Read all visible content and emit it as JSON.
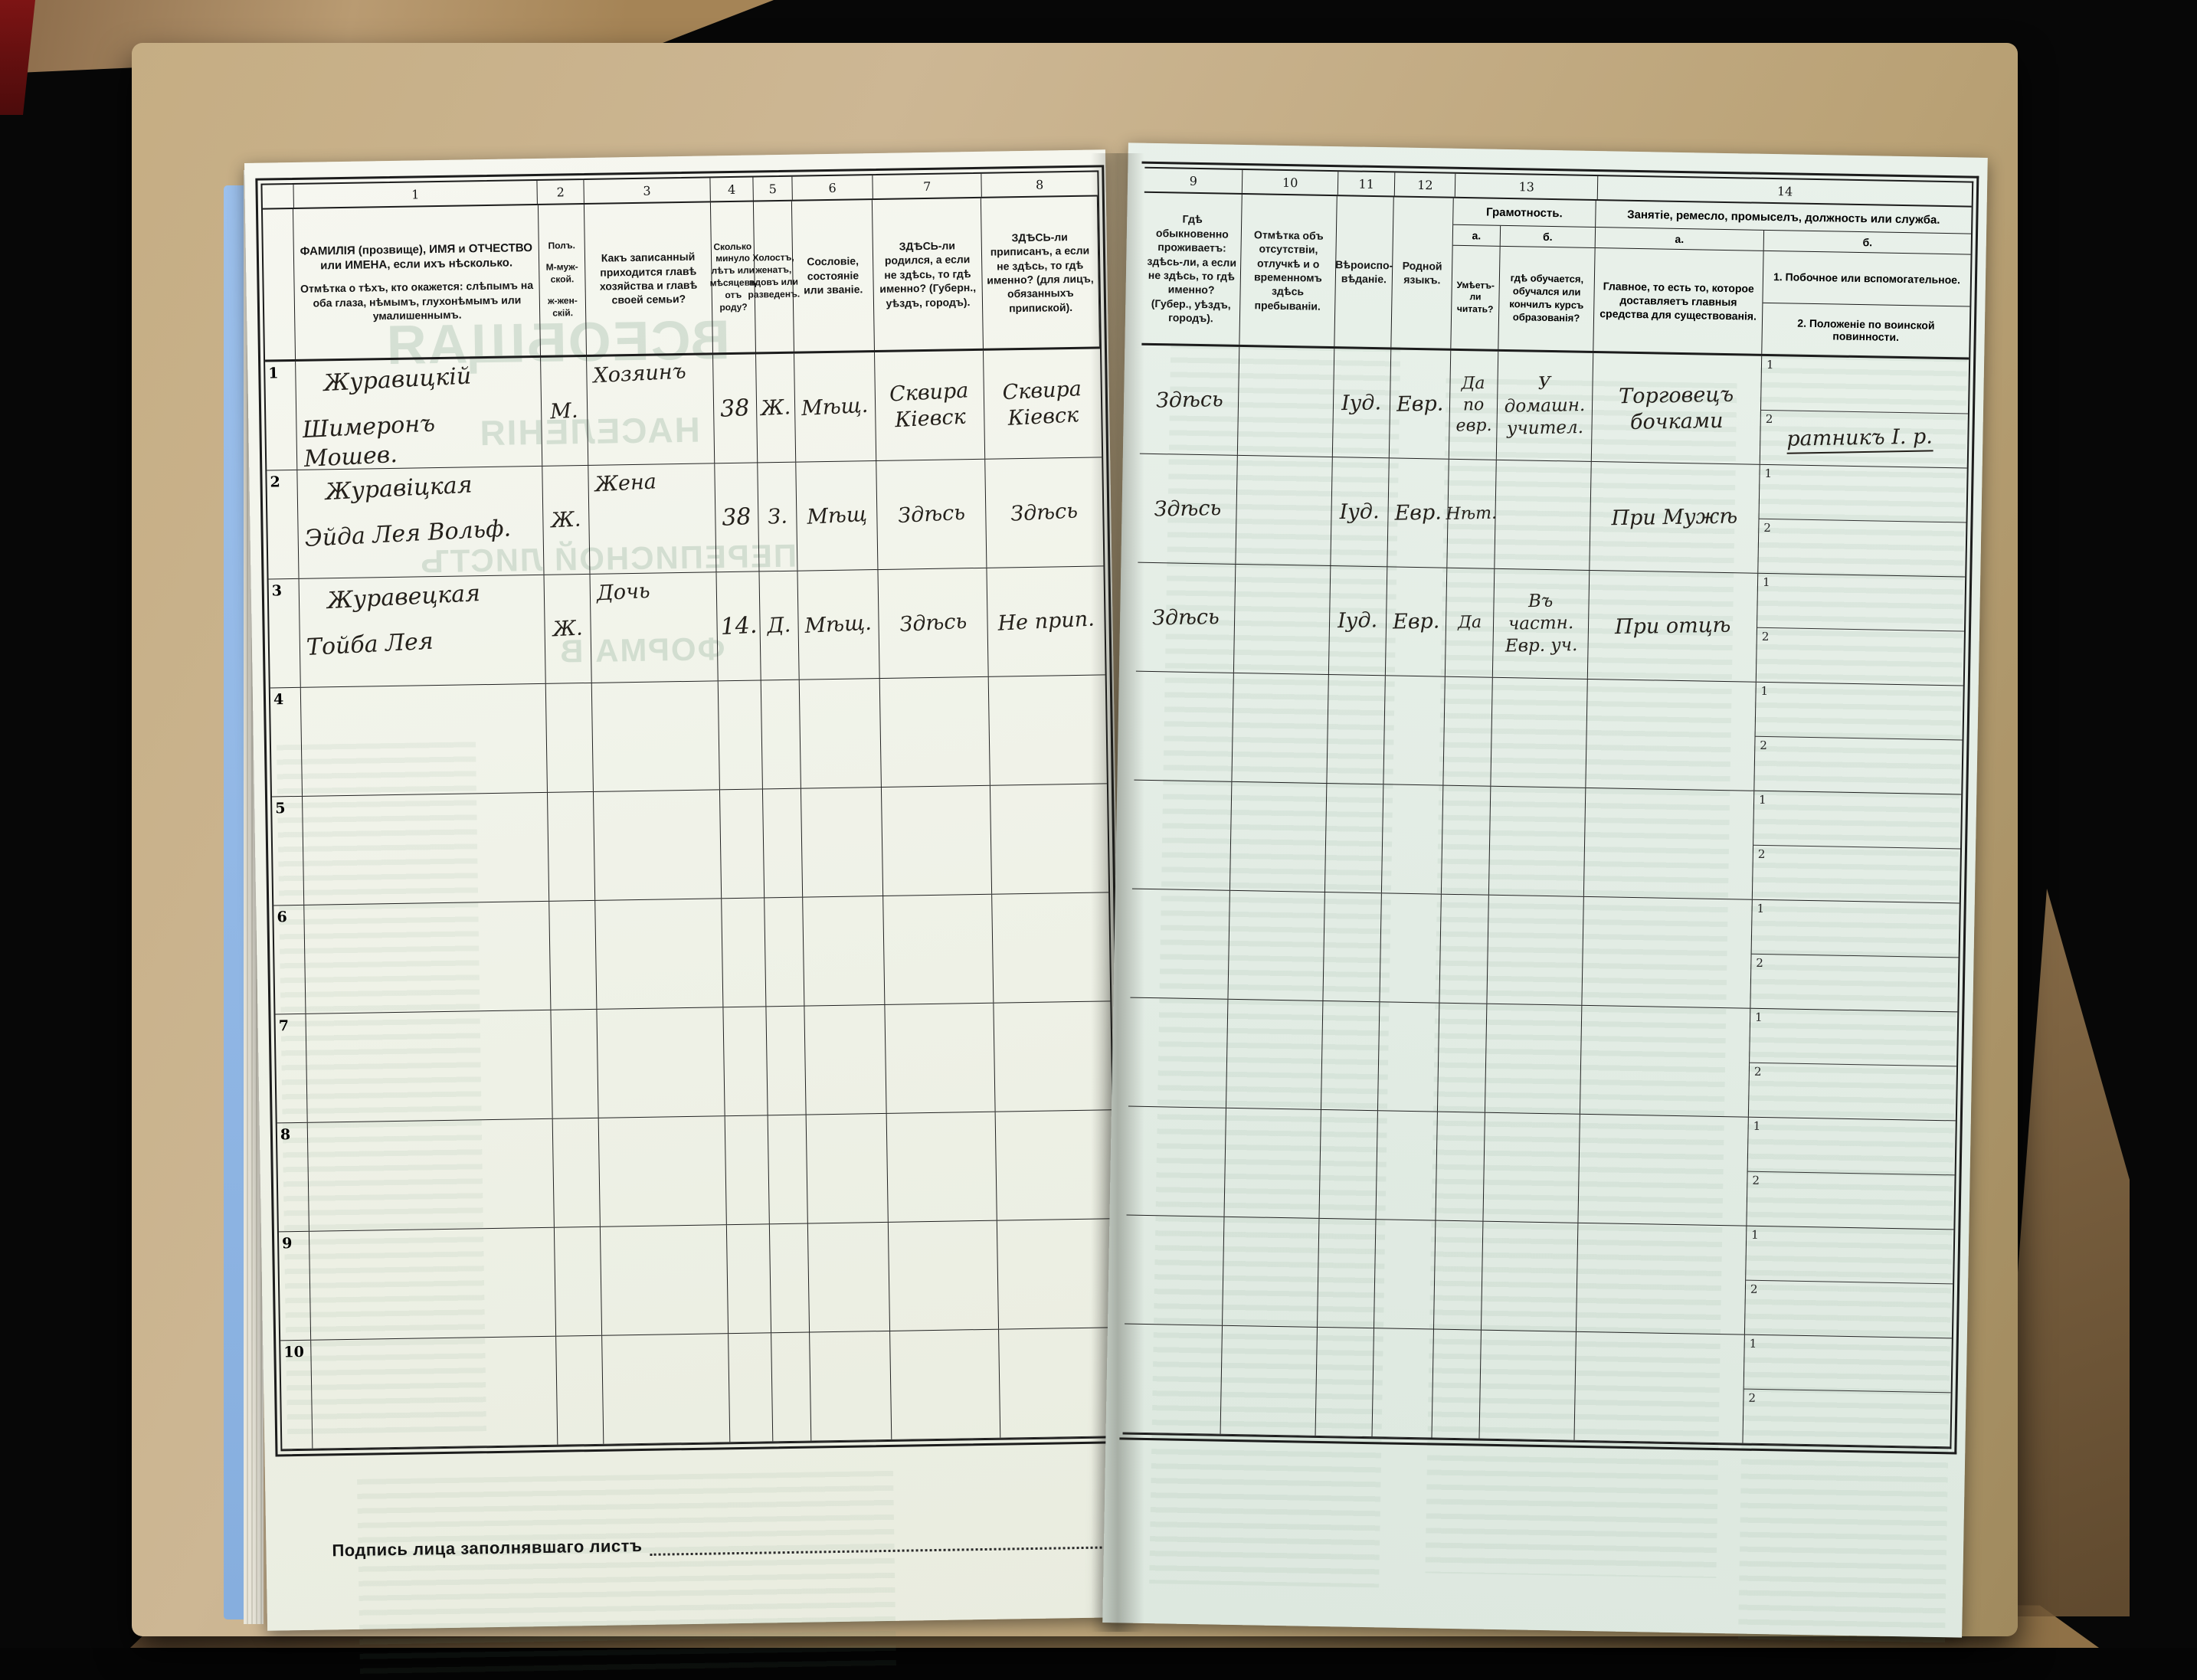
{
  "table": {
    "col_numbers_left": [
      "1",
      "2",
      "3",
      "4",
      "5",
      "6",
      "7",
      "8"
    ],
    "col_numbers_right": [
      "9",
      "10",
      "11",
      "12",
      "13",
      "14"
    ],
    "sub_rows": [
      "1",
      "2"
    ],
    "headers": {
      "c1_main": "ФАМИЛІЯ (прозвище), ИМЯ и ОТЧЕСТВО или ИМЕНА, если ихъ нѣсколько.",
      "c1_note": "Отмѣтка о тѣхъ, кто окажется: слѣпымъ на оба глаза, нѣмымъ, глухонѣмымъ или умалишеннымъ.",
      "c2_l1": "Полъ.",
      "c2_l2": "М-муж-ской.",
      "c2_l3": "ж-жен-скій.",
      "c3": "Какъ записанный приходится главѣ хозяйства и главѣ своей семьи?",
      "c4": "Сколько минуло лѣтъ или мѣсяцевъ отъ роду?",
      "c5": "Холостъ, женатъ, вдовъ или разведенъ.",
      "c6": "Сословіе, состояніе или званіе.",
      "c7": "ЗДѢСЬ-ли родился, а если не здѣсь, то гдѣ именно? (Губерн., уѣздъ, городъ).",
      "c8": "ЗДѢСЬ-ли приписанъ, а если не здѣсь, то гдѣ именно? (для лицъ, обязанныхъ припиской).",
      "c9": "Гдѣ обыкновенно проживаетъ: здѣсь-ли, а если не здѣсь, то гдѣ именно? (Губер., уѣздъ, городъ).",
      "c10": "Отмѣтка объ отсутствіи, отлучкѣ и о временномъ здѣсь пребываніи.",
      "c11": "Вѣроиспо-вѣданіе.",
      "c12": "Родной языкъ.",
      "c13_title": "Грамотность.",
      "c13a_label": "а.",
      "c13b_label": "б.",
      "c13a": "Умѣетъ-ли читать?",
      "c13b": "гдѣ обучается, обучался или кончилъ курсъ образованія?",
      "c14_title": "Занятіе, ремесло, промыселъ, должность или служба.",
      "c14a_label": "а.",
      "c14b_label": "б.",
      "c14a": "Главное, то есть то, которое доставляетъ главныя средства для существованія.",
      "c14b_1": "1. Побочное или вспомогательное.",
      "c14b_2": "2. Положеніе по воинской повинности."
    },
    "rows": [
      {
        "num": "1",
        "name1": "Журавицкій",
        "name2": "Шимеронъ Мошев.",
        "sex": "М.",
        "relation": "Хозяинъ",
        "age": "38",
        "marital": "Ж.",
        "estate": "Мѣщ.",
        "born": "Сквира Кіевск",
        "reg": "Сквира Кіевск",
        "lives": "Здѣсь",
        "absence": "",
        "religion": "Іуд.",
        "lang": "Евр.",
        "reads": "Да по евр.",
        "edu": "У домашн. учител.",
        "occ_main": "Торговецъ бочками",
        "side1": "",
        "side2": "ратникъ I. р."
      },
      {
        "num": "2",
        "name1": "Журавіцкая",
        "name2": "Эйда Лея Вольф.",
        "sex": "Ж.",
        "relation": "Жена",
        "age": "38",
        "marital": "З.",
        "estate": "Мѣщ",
        "born": "Здѣсь",
        "reg": "Здѣсь",
        "lives": "Здѣсь",
        "absence": "",
        "religion": "Іуд.",
        "lang": "Евр.",
        "reads": "Нѣт.",
        "edu": "",
        "occ_main": "При Мужѣ",
        "side1": "",
        "side2": ""
      },
      {
        "num": "3",
        "name1": "Журавецкая",
        "name2": "Тойба Лея",
        "sex": "Ж.",
        "relation": "Дочь",
        "age": "14.",
        "marital": "Д.",
        "estate": "Мѣщ.",
        "born": "Здѣсь",
        "reg": "Не прип.",
        "lives": "Здѣсь",
        "absence": "",
        "religion": "Іуд.",
        "lang": "Евр.",
        "reads": "Да",
        "edu": "Въ частн. Евр. уч.",
        "occ_main": "При отцѣ",
        "side1": "",
        "side2": ""
      },
      {
        "num": "4",
        "name1": "",
        "name2": "",
        "sex": "",
        "relation": "",
        "age": "",
        "marital": "",
        "estate": "",
        "born": "",
        "reg": "",
        "lives": "",
        "absence": "",
        "religion": "",
        "lang": "",
        "reads": "",
        "edu": "",
        "occ_main": "",
        "side1": "",
        "side2": ""
      },
      {
        "num": "5",
        "name1": "",
        "name2": "",
        "sex": "",
        "relation": "",
        "age": "",
        "marital": "",
        "estate": "",
        "born": "",
        "reg": "",
        "lives": "",
        "absence": "",
        "religion": "",
        "lang": "",
        "reads": "",
        "edu": "",
        "occ_main": "",
        "side1": "",
        "side2": ""
      },
      {
        "num": "6",
        "name1": "",
        "name2": "",
        "sex": "",
        "relation": "",
        "age": "",
        "marital": "",
        "estate": "",
        "born": "",
        "reg": "",
        "lives": "",
        "absence": "",
        "religion": "",
        "lang": "",
        "reads": "",
        "edu": "",
        "occ_main": "",
        "side1": "",
        "side2": ""
      },
      {
        "num": "7",
        "name1": "",
        "name2": "",
        "sex": "",
        "relation": "",
        "age": "",
        "marital": "",
        "estate": "",
        "born": "",
        "reg": "",
        "lives": "",
        "absence": "",
        "religion": "",
        "lang": "",
        "reads": "",
        "edu": "",
        "occ_main": "",
        "side1": "",
        "side2": ""
      },
      {
        "num": "8",
        "name1": "",
        "name2": "",
        "sex": "",
        "relation": "",
        "age": "",
        "marital": "",
        "estate": "",
        "born": "",
        "reg": "",
        "lives": "",
        "absence": "",
        "religion": "",
        "lang": "",
        "reads": "",
        "edu": "",
        "occ_main": "",
        "side1": "",
        "side2": ""
      },
      {
        "num": "9",
        "name1": "",
        "name2": "",
        "sex": "",
        "relation": "",
        "age": "",
        "marital": "",
        "estate": "",
        "born": "",
        "reg": "",
        "lives": "",
        "absence": "",
        "religion": "",
        "lang": "",
        "reads": "",
        "edu": "",
        "occ_main": "",
        "side1": "",
        "side2": ""
      },
      {
        "num": "10",
        "name1": "",
        "name2": "",
        "sex": "",
        "relation": "",
        "age": "",
        "marital": "",
        "estate": "",
        "born": "",
        "reg": "",
        "lives": "",
        "absence": "",
        "religion": "",
        "lang": "",
        "reads": "",
        "edu": "",
        "occ_main": "",
        "side1": "",
        "side2": ""
      }
    ]
  },
  "rows": [],
  "footer": {
    "signature_label": "Подпись лица заполнявшаго листъ"
  },
  "bleedthrough": {
    "t1": "ВСЕОБЩАЯ",
    "t2": "НАСЕЛЕНІЯ",
    "t3": "ПЕРЕПИСНОЙ ЛИСТЪ",
    "t4": "ФОРМА В"
  },
  "colors": {
    "paper_left": "#f3f4ec",
    "paper_right": "#e9f1ea",
    "ink_print": "#1c1c1c",
    "cover": "#c5ad83",
    "page_edge": "#9cc0ec"
  }
}
